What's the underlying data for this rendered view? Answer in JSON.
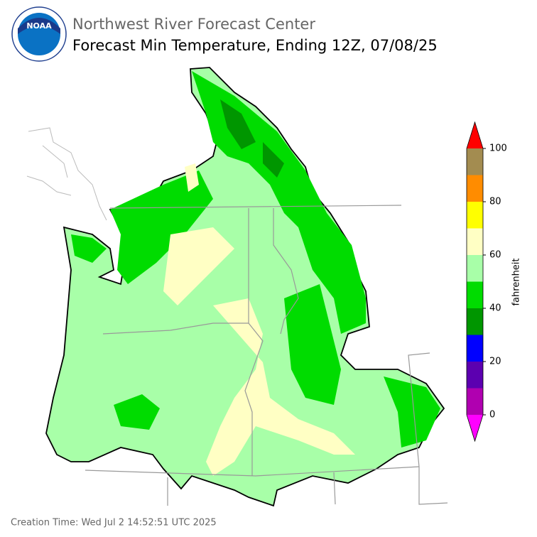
{
  "logo": {
    "text": "NOAA"
  },
  "header": {
    "agency": "Northwest River Forecast Center",
    "title": "Forecast Min Temperature, Ending 12Z, 07/08/25"
  },
  "colorbar": {
    "label": "fahrenheit",
    "range": [
      0,
      100
    ],
    "levels": [
      0,
      10,
      20,
      30,
      40,
      50,
      60,
      70,
      80,
      90,
      100
    ],
    "colors": [
      "#b000b0",
      "#5c00b0",
      "#0000ff",
      "#009600",
      "#00dc00",
      "#a8ffa8",
      "#ffffc4",
      "#ffff00",
      "#ff8c00",
      "#a38c50"
    ],
    "under_color": "#ff00ff",
    "over_color": "#ff0000",
    "ticks": [
      0,
      20,
      40,
      60,
      80,
      100
    ]
  },
  "footer": {
    "creation": "Creation Time: Wed Jul 2 14:52:51 UTC 2025"
  }
}
